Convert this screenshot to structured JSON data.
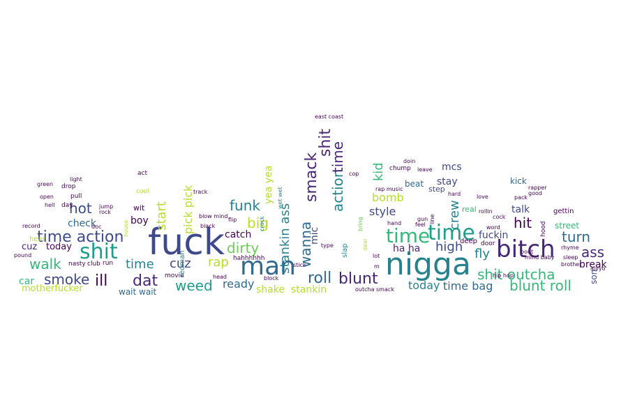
{
  "title": "word cloud",
  "palette": [
    "#440154",
    "#482677",
    "#3e4989",
    "#31688e",
    "#26828e",
    "#1f9e89",
    "#35b779",
    "#6ece58",
    "#b5de2b",
    "#fde725"
  ],
  "words": [
    "fuck",
    "nigga",
    "bitch",
    "shit",
    "man",
    "time",
    "time action",
    "weed",
    "blunt",
    "roll",
    "dat",
    "ill",
    "smoke",
    "walk",
    "hot",
    "funk",
    "big",
    "dirty",
    "cuz",
    "rap",
    "ass",
    "turn",
    "hit",
    "shit outcha",
    "fly",
    "crew",
    "high",
    "stay",
    "fuckin",
    "style",
    "bomb",
    "kid",
    "beat",
    "mcs",
    "stankin ass",
    "wanna",
    "mic",
    "smack",
    "action",
    "slap",
    "ready",
    "catch",
    "shake",
    "stankin",
    "today",
    "time bag",
    "blunt roll",
    "break",
    "street",
    "talk",
    "kick",
    "check",
    "boy",
    "start",
    "pick pick",
    "yea yea",
    "ha ha",
    "car",
    "motherfucker",
    "hear",
    "cool",
    "wit",
    "act",
    "redman",
    "hahhhhhh",
    "wait wait",
    "step",
    "real",
    "son",
    "rapper",
    "gettin",
    "hood",
    "deep",
    "door",
    "bring",
    "crack",
    "drop",
    "day",
    "hell",
    "light",
    "pull",
    "open",
    "green",
    "record",
    "house",
    "line",
    "doc",
    "rock",
    "jump",
    "black",
    "flip",
    "block",
    "head",
    "blow mind",
    "track",
    "movie",
    "run",
    "nasty",
    "club",
    "stick",
    "lot",
    "hand",
    "feel",
    "gun",
    "rollin",
    "love",
    "hard",
    "hip hop",
    "word",
    "mind baby",
    "pack",
    "pound",
    "rhyme",
    "aiyyo",
    "sleep",
    "brother",
    "good",
    "m",
    "cop",
    "chump",
    "doin",
    "leave",
    "east coast",
    "rap music",
    "wet wet",
    "outcha smack",
    "type",
    "deal",
    "cock",
    "bout"
  ]
}
